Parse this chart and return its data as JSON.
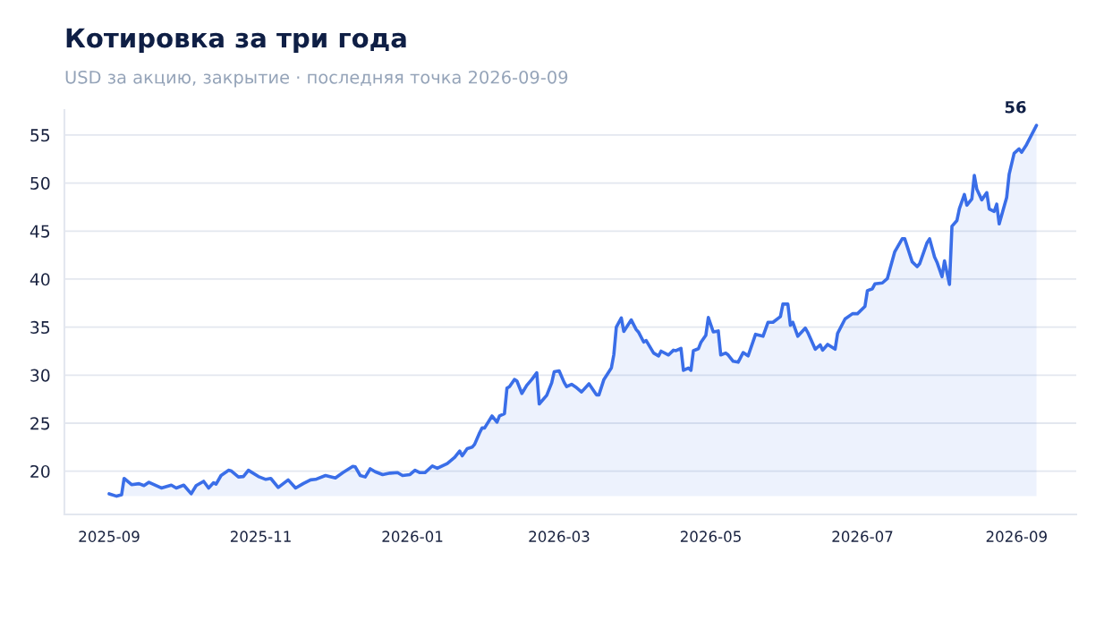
{
  "chart_data": {
    "type": "area",
    "title": "Котировка за три года",
    "subtitle": "USD за акцию, закрытие · последняя точка 2026-09-09",
    "x": [
      "2025-09-01",
      "2025-09-04",
      "2025-09-06",
      "2025-09-07",
      "2025-09-10",
      "2025-09-13",
      "2025-09-15",
      "2025-09-17",
      "2025-09-22",
      "2025-09-26",
      "2025-09-28",
      "2025-10-01",
      "2025-10-04",
      "2025-10-06",
      "2025-10-09",
      "2025-10-11",
      "2025-10-13",
      "2025-10-14",
      "2025-10-16",
      "2025-10-19",
      "2025-10-20",
      "2025-10-23",
      "2025-10-25",
      "2025-10-27",
      "2025-10-31",
      "2025-11-03",
      "2025-11-05",
      "2025-11-08",
      "2025-11-10",
      "2025-11-12",
      "2025-11-15",
      "2025-11-18",
      "2025-11-21",
      "2025-11-23",
      "2025-11-27",
      "2025-12-01",
      "2025-12-04",
      "2025-12-08",
      "2025-12-09",
      "2025-12-11",
      "2025-12-13",
      "2025-12-15",
      "2025-12-17",
      "2025-12-20",
      "2025-12-23",
      "2025-12-26",
      "2025-12-28",
      "2025-12-31",
      "2026-01-02",
      "2026-01-04",
      "2026-01-06",
      "2026-01-09",
      "2026-01-11",
      "2026-01-15",
      "2026-01-18",
      "2026-01-20",
      "2026-01-21",
      "2026-01-23",
      "2026-01-25",
      "2026-01-26",
      "2026-01-28",
      "2026-01-29",
      "2026-01-30",
      "2026-02-02",
      "2026-02-04",
      "2026-02-05",
      "2026-02-07",
      "2026-02-08",
      "2026-02-09",
      "2026-02-11",
      "2026-02-12",
      "2026-02-14",
      "2026-02-16",
      "2026-02-18",
      "2026-02-20",
      "2026-02-21",
      "2026-02-24",
      "2026-02-26",
      "2026-02-27",
      "2026-03-01",
      "2026-03-03",
      "2026-03-04",
      "2026-03-06",
      "2026-03-08",
      "2026-03-10",
      "2026-03-13",
      "2026-03-16",
      "2026-03-17",
      "2026-03-19",
      "2026-03-22",
      "2026-03-23",
      "2026-03-24",
      "2026-03-26",
      "2026-03-27",
      "2026-03-30",
      "2026-04-01",
      "2026-04-02",
      "2026-04-04",
      "2026-04-05",
      "2026-04-08",
      "2026-04-10",
      "2026-04-11",
      "2026-04-14",
      "2026-04-16",
      "2026-04-17",
      "2026-04-19",
      "2026-04-20",
      "2026-04-22",
      "2026-04-23",
      "2026-04-24",
      "2026-04-26",
      "2026-04-27",
      "2026-04-29",
      "2026-04-30",
      "2026-05-02",
      "2026-05-04",
      "2026-05-05",
      "2026-05-07",
      "2026-05-08",
      "2026-05-10",
      "2026-05-12",
      "2026-05-14",
      "2026-05-16",
      "2026-05-19",
      "2026-05-22",
      "2026-05-24",
      "2026-05-26",
      "2026-05-29",
      "2026-05-30",
      "2026-06-01",
      "2026-06-02",
      "2026-06-03",
      "2026-06-05",
      "2026-06-08",
      "2026-06-09",
      "2026-06-12",
      "2026-06-14",
      "2026-06-15",
      "2026-06-17",
      "2026-06-20",
      "2026-06-21",
      "2026-06-24",
      "2026-06-27",
      "2026-06-29",
      "2026-07-02",
      "2026-07-03",
      "2026-07-05",
      "2026-07-06",
      "2026-07-09",
      "2026-07-11",
      "2026-07-12",
      "2026-07-14",
      "2026-07-17",
      "2026-07-18",
      "2026-07-21",
      "2026-07-23",
      "2026-07-24",
      "2026-07-27",
      "2026-07-28",
      "2026-07-30",
      "2026-07-31",
      "2026-08-02",
      "2026-08-03",
      "2026-08-05",
      "2026-08-06",
      "2026-08-08",
      "2026-08-09",
      "2026-08-11",
      "2026-08-12",
      "2026-08-14",
      "2026-08-15",
      "2026-08-16",
      "2026-08-18",
      "2026-08-20",
      "2026-08-21",
      "2026-08-23",
      "2026-08-24",
      "2026-08-25",
      "2026-08-28",
      "2026-08-29",
      "2026-08-31",
      "2026-09-02",
      "2026-09-03",
      "2026-09-05",
      "2026-09-09"
    ],
    "series": [
      {
        "color": "#3a6ee8",
        "values": [
          17.65,
          17.4,
          17.55,
          19.25,
          18.6,
          18.7,
          18.5,
          18.85,
          18.25,
          18.55,
          18.25,
          18.55,
          17.65,
          18.5,
          18.95,
          18.25,
          18.8,
          18.65,
          19.55,
          20.1,
          20.05,
          19.4,
          19.45,
          20.1,
          19.45,
          19.15,
          19.25,
          18.3,
          18.7,
          19.1,
          18.25,
          18.7,
          19.1,
          19.15,
          19.55,
          19.3,
          19.85,
          20.5,
          20.45,
          19.55,
          19.4,
          20.25,
          19.95,
          19.65,
          19.8,
          19.85,
          19.55,
          19.65,
          20.1,
          19.85,
          19.85,
          20.55,
          20.3,
          20.8,
          21.45,
          22.1,
          21.6,
          22.35,
          22.5,
          22.8,
          24.0,
          24.5,
          24.5,
          25.75,
          25.1,
          25.75,
          26.0,
          28.65,
          28.8,
          29.55,
          29.4,
          28.1,
          28.95,
          29.55,
          30.25,
          27.0,
          27.9,
          29.2,
          30.35,
          30.45,
          29.25,
          28.8,
          29.05,
          28.7,
          28.25,
          29.1,
          27.95,
          27.95,
          29.55,
          30.75,
          32.15,
          35.0,
          35.95,
          34.55,
          35.75,
          34.75,
          34.45,
          33.45,
          33.6,
          32.3,
          32.0,
          32.5,
          32.1,
          32.6,
          32.55,
          32.8,
          30.5,
          30.75,
          30.5,
          32.55,
          32.75,
          33.4,
          34.15,
          36.0,
          34.5,
          34.6,
          32.1,
          32.3,
          32.1,
          31.45,
          31.35,
          32.35,
          32.0,
          34.25,
          34.05,
          35.5,
          35.5,
          36.1,
          37.4,
          37.4,
          35.2,
          35.5,
          34.05,
          34.9,
          34.45,
          32.7,
          33.15,
          32.6,
          33.2,
          32.7,
          34.35,
          35.85,
          36.4,
          36.4,
          37.15,
          38.8,
          39.0,
          39.5,
          39.6,
          40.05,
          41.0,
          42.85,
          44.2,
          44.2,
          41.8,
          41.3,
          41.6,
          43.8,
          44.2,
          42.3,
          41.75,
          40.25,
          41.9,
          39.45,
          45.5,
          46.1,
          47.35,
          48.8,
          47.7,
          48.35,
          50.8,
          49.35,
          48.25,
          49.0,
          47.3,
          47.05,
          47.8,
          45.75,
          48.5,
          50.9,
          53.1,
          53.55,
          53.2,
          54.0,
          56
        ]
      }
    ],
    "annotations": [
      {
        "text": "56",
        "x": "2026-09-09",
        "y": 56
      }
    ],
    "xlim": [
      "2025-08-14",
      "2026-09-25"
    ],
    "xticks": [
      "2025-09",
      "2025-11",
      "2026-01",
      "2026-03",
      "2026-05",
      "2026-07",
      "2026-09"
    ],
    "ylim": [
      15.5,
      57.6
    ],
    "yticks": [
      20,
      25,
      30,
      35,
      40,
      45,
      50,
      55
    ],
    "grid": "y"
  }
}
